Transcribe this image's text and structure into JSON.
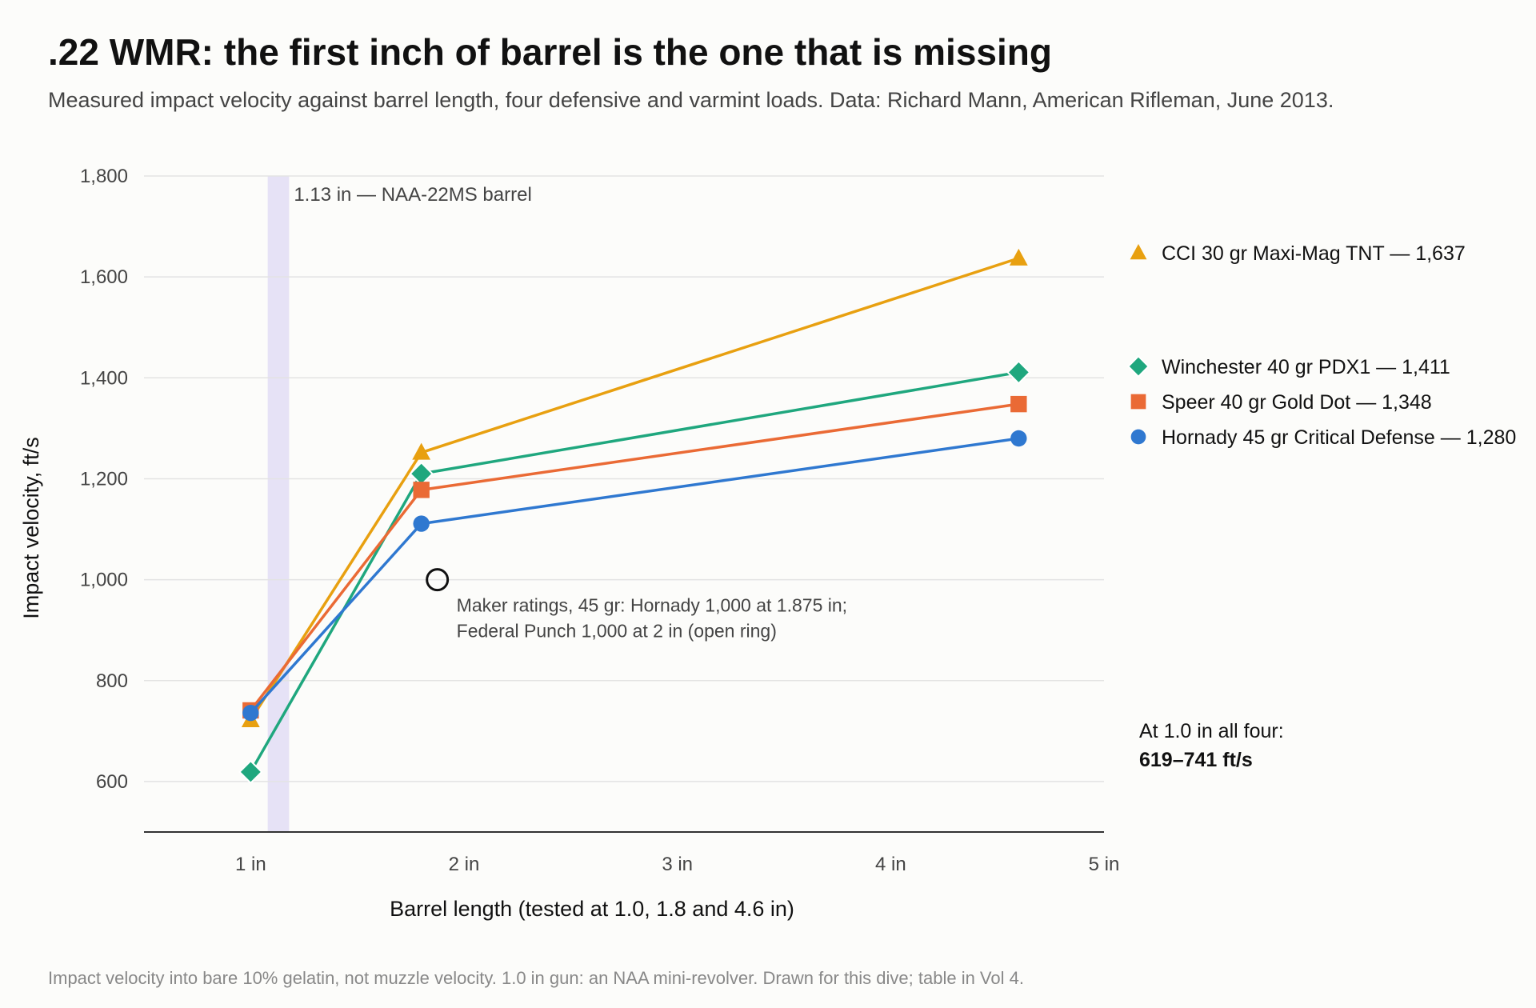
{
  "header": {
    "title": ".22 WMR: the first inch of barrel is the one that is missing",
    "subtitle": "Measured impact velocity against barrel length, four defensive and varmint loads. Data: Richard Mann, American Rifleman, June 2013."
  },
  "footnote": "Impact velocity into bare 10% gelatin, not muzzle velocity. 1.0 in gun: an NAA mini-revolver. Drawn for this dive; table in Vol 4.",
  "chart_data": {
    "type": "line",
    "xlabel": "Barrel length (tested at 1.0, 1.8 and 4.6 in)",
    "ylabel": "Impact velocity, ft/s",
    "xlim": [
      0.5,
      5
    ],
    "ylim": [
      500,
      1800
    ],
    "x_ticks": [
      {
        "value": 1,
        "label": "1 in"
      },
      {
        "value": 2,
        "label": "2 in"
      },
      {
        "value": 3,
        "label": "3 in"
      },
      {
        "value": 4,
        "label": "4 in"
      },
      {
        "value": 5,
        "label": "5 in"
      }
    ],
    "y_ticks": [
      {
        "value": 600,
        "label": "600"
      },
      {
        "value": 800,
        "label": "800"
      },
      {
        "value": 1000,
        "label": "1,000"
      },
      {
        "value": 1200,
        "label": "1,200"
      },
      {
        "value": 1400,
        "label": "1,400"
      },
      {
        "value": 1600,
        "label": "1,600"
      },
      {
        "value": 1800,
        "label": "1,800"
      }
    ],
    "grid": "horizontal",
    "legend_position": "right",
    "series": [
      {
        "name": "CCI 30 gr Maxi-Mag TNT",
        "legend_label": "CCI 30 gr Maxi-Mag TNT — 1,637",
        "color": "#e8a010",
        "marker": "triangle",
        "x": [
          1.0,
          1.8,
          4.6
        ],
        "y": [
          722,
          1252,
          1637
        ]
      },
      {
        "name": "Winchester 40 gr PDX1",
        "legend_label": "Winchester 40 gr PDX1 — 1,411",
        "color": "#1fa77e",
        "marker": "diamond",
        "x": [
          1.0,
          1.8,
          4.6
        ],
        "y": [
          619,
          1210,
          1411
        ]
      },
      {
        "name": "Speer 40 gr Gold Dot",
        "legend_label": "Speer 40 gr Gold Dot — 1,348",
        "color": "#ea6a35",
        "marker": "square",
        "x": [
          1.0,
          1.8,
          4.6
        ],
        "y": [
          741,
          1178,
          1348
        ]
      },
      {
        "name": "Hornady 45 gr Critical Defense",
        "legend_label": "Hornady 45 gr Critical Defense — 1,280",
        "color": "#2f78d0",
        "marker": "circle",
        "x": [
          1.0,
          1.8,
          4.6
        ],
        "y": [
          736,
          1111,
          1280
        ]
      }
    ],
    "highlight_band": {
      "x_from": 1.08,
      "x_to": 1.18,
      "label": "1.13 in — NAA-22MS barrel",
      "color": "#e6e2f6"
    },
    "reference_point": {
      "x": 1.875,
      "y": 1000,
      "label_lines": [
        "Maker ratings, 45 gr: Hornady 1,000 at 1.875 in;",
        "Federal Punch 1,000 at 2 in (open ring)"
      ]
    },
    "side_note": {
      "line1": "At 1.0 in all four:",
      "line2": "619–741 ft/s"
    }
  }
}
